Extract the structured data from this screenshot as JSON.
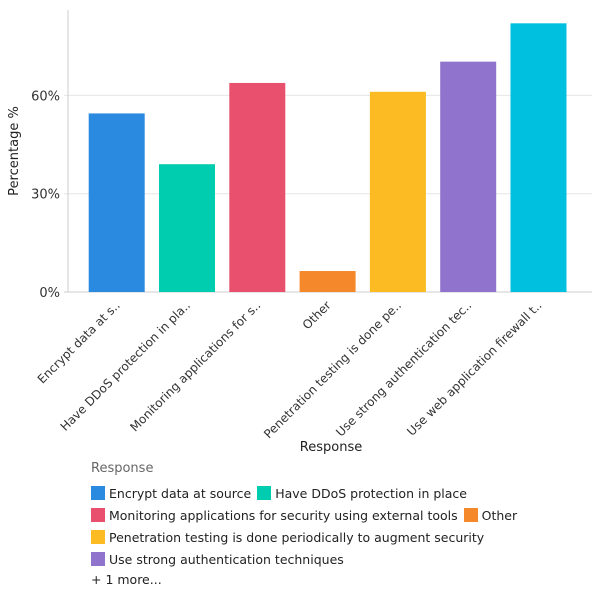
{
  "chart_data": {
    "type": "bar",
    "xlabel": "Response",
    "ylabel": "Percentage %",
    "ylim": [
      0,
      85
    ],
    "yticks": [
      "0%",
      "30%",
      "60%"
    ],
    "ytick_values": [
      0,
      30,
      60
    ],
    "grid": true,
    "categories": [
      "Encrypt data at s..",
      "Have DDoS protection in pla..",
      "Monitoring applications for s..",
      "Other",
      "Penetration testing is done pe..",
      "Use strong authentication tec..",
      "Use web application firewall t.."
    ],
    "values": [
      54.5,
      39.0,
      63.8,
      6.4,
      61.1,
      70.3,
      82.0
    ],
    "colors": [
      "#2a8ae0",
      "#00ccb0",
      "#e8506e",
      "#f5882a",
      "#fcbb22",
      "#9073cc",
      "#00c0e0"
    ],
    "legend": {
      "title": "Response",
      "placement": "bottom",
      "rows": [
        [
          {
            "label": "Encrypt data at source",
            "color": "#2a8ae0"
          },
          {
            "label": "Have DDoS protection in place",
            "color": "#00ccb0"
          }
        ],
        [
          {
            "label": "Monitoring applications for security using external tools",
            "color": "#e8506e"
          },
          {
            "label": "Other",
            "color": "#f5882a"
          }
        ],
        [
          {
            "label": "Penetration testing is done periodically to augment security",
            "color": "#fcbb22"
          }
        ],
        [
          {
            "label": "Use strong authentication techniques",
            "color": "#9073cc"
          }
        ]
      ],
      "more": "+ 1 more..."
    }
  }
}
